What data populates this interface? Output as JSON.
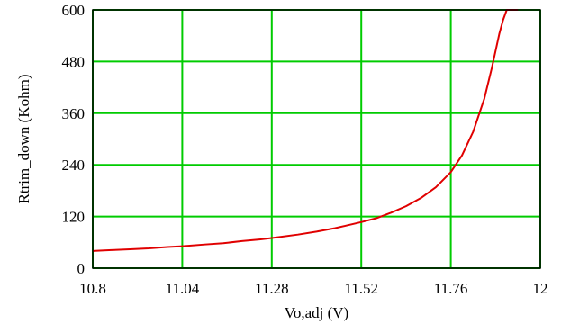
{
  "chart_data": {
    "type": "line",
    "title": "",
    "xlabel": "Vo,adj (V)",
    "ylabel": "Rtrim_down (Kohm)",
    "xlim": [
      10.8,
      12
    ],
    "ylim": [
      0,
      600
    ],
    "xticks": [
      10.8,
      11.04,
      11.28,
      11.52,
      11.76,
      12
    ],
    "xtick_labels": [
      "10.8",
      "11.04",
      "11.28",
      "11.52",
      "11.76",
      "12"
    ],
    "yticks": [
      0,
      120,
      240,
      360,
      480,
      600
    ],
    "ytick_labels": [
      "0",
      "120",
      "240",
      "360",
      "480",
      "600"
    ],
    "grid": true,
    "colors": {
      "line": "#e00000",
      "grid": "#00cc00",
      "axes": "#000000"
    },
    "series": [
      {
        "x": [
          10.8,
          10.85,
          10.9,
          10.95,
          11.0,
          11.04,
          11.1,
          11.15,
          11.2,
          11.25,
          11.28,
          11.35,
          11.4,
          11.45,
          11.52,
          11.56,
          11.6,
          11.64,
          11.68,
          11.72,
          11.76,
          11.79,
          11.82,
          11.85,
          11.87,
          11.89,
          11.9,
          11.91,
          11.92,
          11.93,
          11.94
        ],
        "y": [
          40,
          42,
          44,
          46,
          49,
          51,
          55,
          58,
          63,
          67,
          70,
          78,
          85,
          93,
          107,
          116,
          129,
          144,
          163,
          188,
          223,
          262,
          317,
          394,
          465,
          544,
          576,
          600,
          600,
          600,
          600
        ]
      }
    ]
  }
}
